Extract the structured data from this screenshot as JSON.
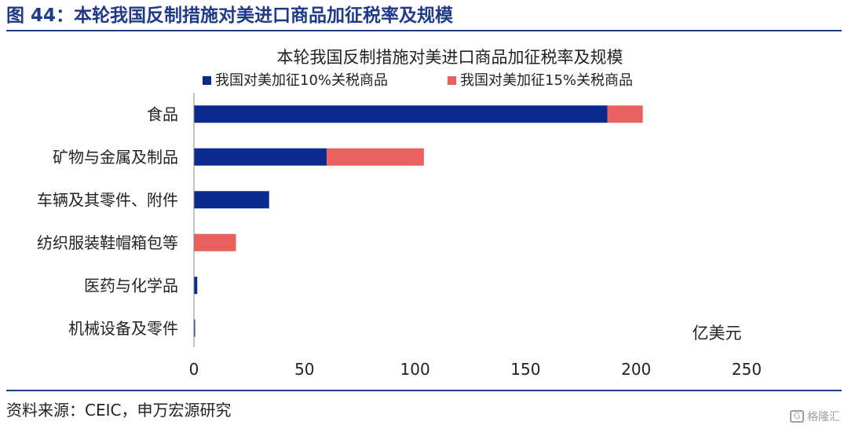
{
  "figure": {
    "title": "图 44：本轮我国反制措施对美进口商品加征税率及规模",
    "source": "资料来源：CEIC，申万宏源研究",
    "watermark": "格隆汇"
  },
  "chart_data": {
    "type": "bar",
    "orientation": "horizontal",
    "stacked": true,
    "title": "本轮我国反制措施对美进口商品加征税率及规模",
    "unit_label": "亿美元",
    "categories": [
      "食品",
      "矿物与金属及制品",
      "车辆及其零件、附件",
      "纺织服装鞋帽箱包等",
      "医药与化学品",
      "机械设备及零件"
    ],
    "series": [
      {
        "name": "我国对美加征10%关税商品",
        "color": "#0b2a8f",
        "values": [
          187,
          60,
          34,
          0,
          1.5,
          0.5
        ]
      },
      {
        "name": "我国对美加征15%关税商品",
        "color": "#e8615f",
        "values": [
          16,
          44,
          0,
          19,
          0,
          0
        ]
      }
    ],
    "xlim": [
      0,
      250
    ],
    "xticks": [
      0,
      50,
      100,
      150,
      200,
      250
    ],
    "grid": false,
    "legend_position": "top"
  }
}
